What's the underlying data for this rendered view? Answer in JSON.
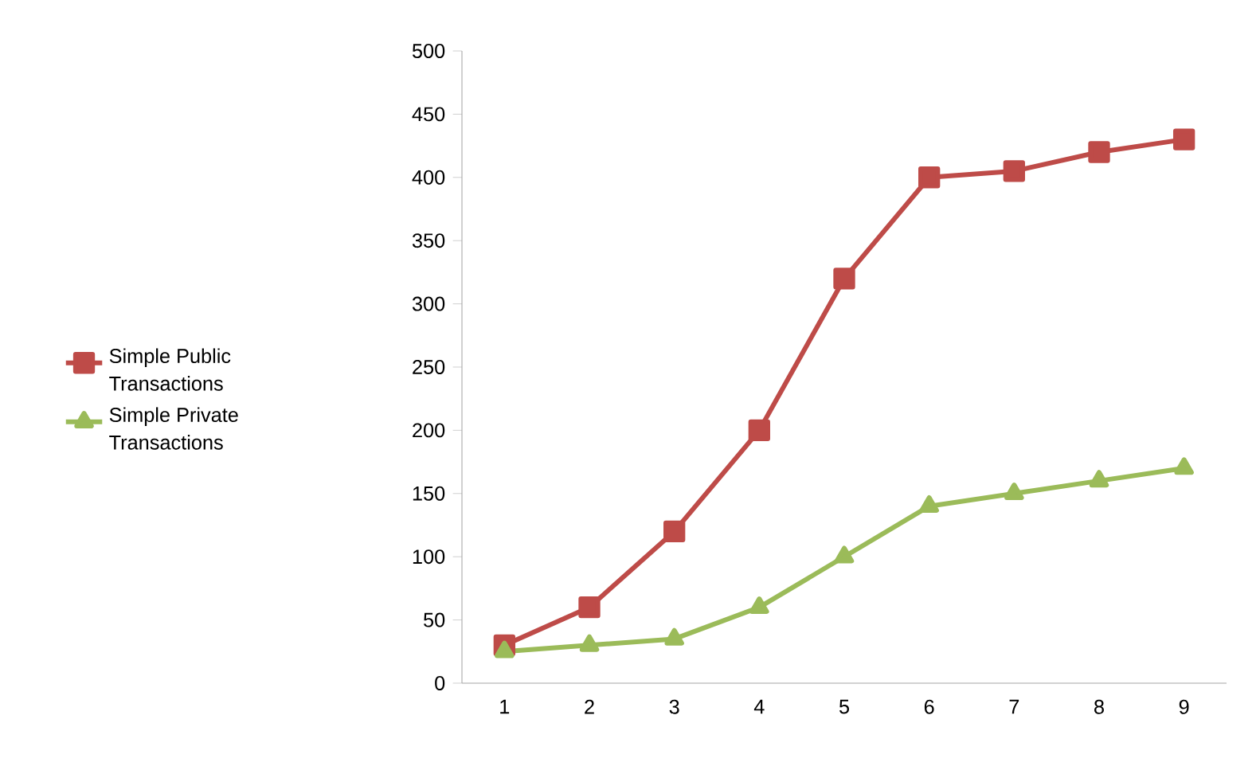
{
  "chart_data": {
    "type": "line",
    "categories": [
      "1",
      "2",
      "3",
      "4",
      "5",
      "6",
      "7",
      "8",
      "9"
    ],
    "series": [
      {
        "name": "Simple Public Transactions",
        "color": "#be4b48",
        "marker": "square",
        "values": [
          30,
          60,
          120,
          200,
          320,
          400,
          405,
          420,
          430
        ]
      },
      {
        "name": "Simple Private Transactions",
        "color": "#9bbb59",
        "marker": "triangle",
        "values": [
          25,
          30,
          35,
          60,
          100,
          140,
          150,
          160,
          170
        ]
      }
    ],
    "ylim": [
      0,
      500
    ],
    "yticks": [
      0,
      50,
      100,
      150,
      200,
      250,
      300,
      350,
      400,
      450,
      500
    ],
    "grid": false,
    "legend": "left",
    "line_style": "solid"
  }
}
